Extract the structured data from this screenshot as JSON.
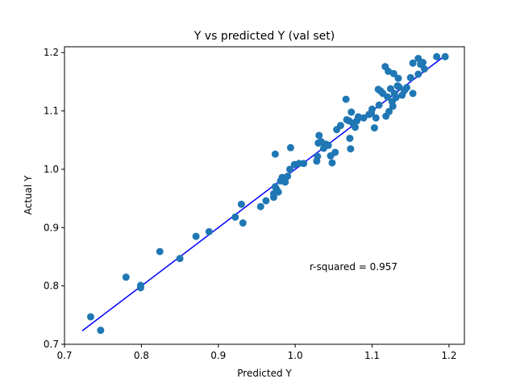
{
  "chart_data": {
    "type": "scatter",
    "title": "Y vs predicted Y (val set)",
    "xlabel": "Predicted Y",
    "ylabel": "Actual Y",
    "xlim": [
      0.7,
      1.22
    ],
    "ylim": [
      0.7,
      1.21
    ],
    "x_ticks": [
      0.7,
      0.8,
      0.9,
      1.0,
      1.1,
      1.2
    ],
    "x_tick_labels": [
      "0.7",
      "0.8",
      "0.9",
      "1.0",
      "1.1",
      "1.2"
    ],
    "y_ticks": [
      0.7,
      0.8,
      0.9,
      1.0,
      1.1,
      1.2
    ],
    "y_tick_labels": [
      "0.7",
      "0.8",
      "0.9",
      "1.0",
      "1.1",
      "1.2"
    ],
    "grid": false,
    "point_color": "#1f77b4",
    "line_color": "#0000ff",
    "annotation": "r-squared = 0.957",
    "fit_line": {
      "x": [
        0.723,
        1.195
      ],
      "y": [
        0.723,
        1.195
      ]
    },
    "points": [
      [
        0.734,
        0.747
      ],
      [
        0.747,
        0.724
      ],
      [
        0.78,
        0.815
      ],
      [
        0.799,
        0.797
      ],
      [
        0.799,
        0.801
      ],
      [
        0.824,
        0.859
      ],
      [
        0.85,
        0.847
      ],
      [
        0.871,
        0.885
      ],
      [
        0.888,
        0.893
      ],
      [
        0.922,
        0.918
      ],
      [
        0.93,
        0.94
      ],
      [
        0.932,
        0.908
      ],
      [
        0.955,
        0.936
      ],
      [
        0.962,
        0.946
      ],
      [
        0.972,
        0.952
      ],
      [
        0.972,
        0.958
      ],
      [
        0.974,
        0.97
      ],
      [
        0.976,
        0.965
      ],
      [
        0.978,
        0.961
      ],
      [
        0.974,
        1.026
      ],
      [
        0.981,
        0.98
      ],
      [
        0.983,
        0.986
      ],
      [
        0.987,
        0.978
      ],
      [
        0.99,
        0.988
      ],
      [
        0.993,
        1.0
      ],
      [
        0.994,
        1.037
      ],
      [
        0.999,
        1.008
      ],
      [
        1.005,
        1.01
      ],
      [
        1.011,
        1.01
      ],
      [
        1.028,
        1.014
      ],
      [
        1.029,
        1.022
      ],
      [
        1.03,
        1.045
      ],
      [
        1.031,
        1.058
      ],
      [
        1.034,
        1.047
      ],
      [
        1.037,
        1.036
      ],
      [
        1.04,
        1.043
      ],
      [
        1.043,
        1.041
      ],
      [
        1.046,
        1.023
      ],
      [
        1.048,
        1.011
      ],
      [
        1.052,
        1.029
      ],
      [
        1.054,
        1.068
      ],
      [
        1.059,
        1.075
      ],
      [
        1.066,
        1.12
      ],
      [
        1.067,
        1.085
      ],
      [
        1.07,
        1.083
      ],
      [
        1.071,
        1.053
      ],
      [
        1.072,
        1.035
      ],
      [
        1.073,
        1.098
      ],
      [
        1.075,
        1.079
      ],
      [
        1.078,
        1.072
      ],
      [
        1.08,
        1.083
      ],
      [
        1.082,
        1.09
      ],
      [
        1.089,
        1.088
      ],
      [
        1.096,
        1.094
      ],
      [
        1.099,
        1.096
      ],
      [
        1.1,
        1.103
      ],
      [
        1.103,
        1.071
      ],
      [
        1.105,
        1.088
      ],
      [
        1.108,
        1.137
      ],
      [
        1.109,
        1.11
      ],
      [
        1.111,
        1.134
      ],
      [
        1.114,
        1.13
      ],
      [
        1.117,
        1.176
      ],
      [
        1.118,
        1.091
      ],
      [
        1.12,
        1.124
      ],
      [
        1.121,
        1.168
      ],
      [
        1.122,
        1.099
      ],
      [
        1.124,
        1.138
      ],
      [
        1.126,
        1.116
      ],
      [
        1.127,
        1.108
      ],
      [
        1.128,
        1.164
      ],
      [
        1.129,
        1.13
      ],
      [
        1.131,
        1.123
      ],
      [
        1.133,
        1.143
      ],
      [
        1.134,
        1.156
      ],
      [
        1.135,
        1.141
      ],
      [
        1.139,
        1.127
      ],
      [
        1.142,
        1.135
      ],
      [
        1.145,
        1.14
      ],
      [
        1.15,
        1.157
      ],
      [
        1.153,
        1.182
      ],
      [
        1.153,
        1.13
      ],
      [
        1.16,
        1.163
      ],
      [
        1.16,
        1.19
      ],
      [
        1.163,
        1.18
      ],
      [
        1.166,
        1.183
      ],
      [
        1.168,
        1.172
      ],
      [
        1.184,
        1.193
      ],
      [
        1.195,
        1.193
      ]
    ]
  }
}
